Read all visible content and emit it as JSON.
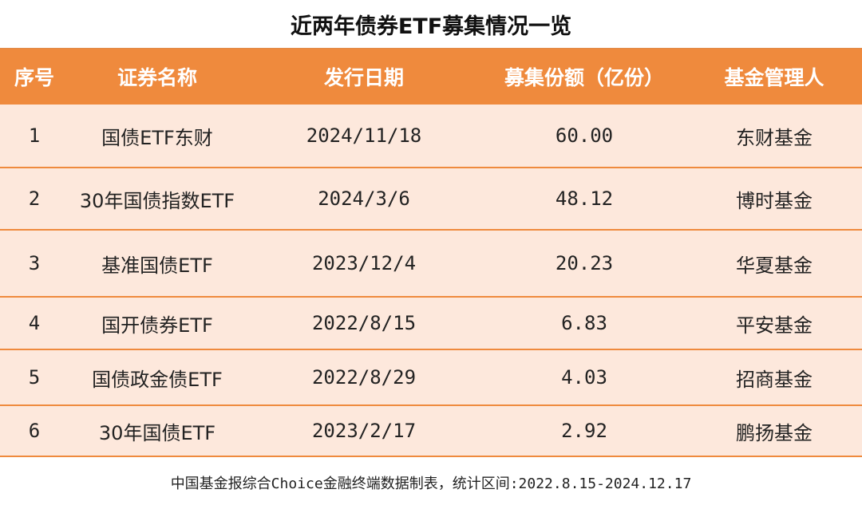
{
  "title": "近两年债券ETF募集情况一览",
  "columns": [
    "序号",
    "证券名称",
    "发行日期",
    "募集份额（亿份）",
    "基金管理人"
  ],
  "rows": [
    {
      "no": "1",
      "name": "国债ETF东财",
      "date": "2024/11/18",
      "amount": "60.00",
      "manager": "东财基金"
    },
    {
      "no": "2",
      "name": "30年国债指数ETF",
      "date": "2024/3/6",
      "amount": "48.12",
      "manager": "博时基金"
    },
    {
      "no": "3",
      "name": "基准国债ETF",
      "date": "2023/12/4",
      "amount": "20.23",
      "manager": "华夏基金"
    },
    {
      "no": "4",
      "name": "国开债券ETF",
      "date": "2022/8/15",
      "amount": "6.83",
      "manager": "平安基金"
    },
    {
      "no": "5",
      "name": "国债政金债ETF",
      "date": "2022/8/29",
      "amount": "4.03",
      "manager": "招商基金"
    },
    {
      "no": "6",
      "name": "30年国债ETF",
      "date": "2023/2/17",
      "amount": "2.92",
      "manager": "鹏扬基金"
    }
  ],
  "footer": "中国基金报综合Choice金融终端数据制表，统计区间:2022.8.15-2024.12.17",
  "colors": {
    "header_bg": "#ef8a3d",
    "row_bg": "#fde8dc",
    "header_text": "#ffffff"
  }
}
